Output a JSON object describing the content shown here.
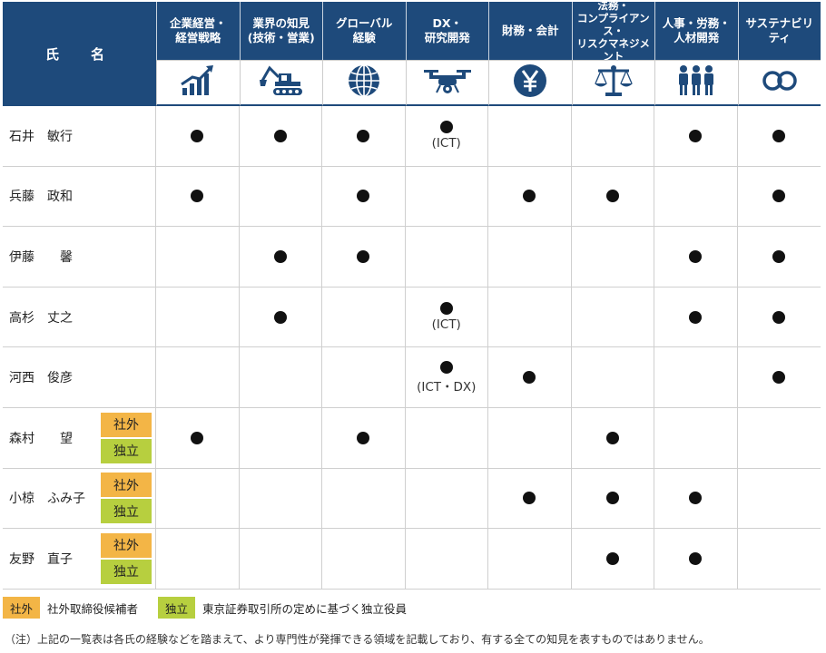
{
  "header": {
    "name_col": "氏　名",
    "skills": [
      {
        "label": "企業経営・\n経営戦略",
        "icon": "growth-chart-icon"
      },
      {
        "label": "業界の知見\n(技術・営業)",
        "icon": "excavator-icon"
      },
      {
        "label": "グローバル\n経験",
        "icon": "globe-icon"
      },
      {
        "label": "DX・\n研究開発",
        "icon": "drone-icon"
      },
      {
        "label": "財務・会計",
        "icon": "yen-icon"
      },
      {
        "label": "法務・\nコンプライアンス・\nリスクマネジメント",
        "icon": "scales-icon"
      },
      {
        "label": "人事・労務・\n人材開発",
        "icon": "people-icon"
      },
      {
        "label": "サステナビリティ",
        "icon": "infinity-loop-icon"
      }
    ]
  },
  "badges": {
    "outside": "社外",
    "independent": "独立"
  },
  "rows": [
    {
      "name": "石井　敏行",
      "outside": false,
      "independent": false,
      "cells": [
        1,
        1,
        1,
        1,
        0,
        0,
        1,
        1
      ],
      "notes": {
        "3": "(ICT)"
      }
    },
    {
      "name": "兵藤　政和",
      "outside": false,
      "independent": false,
      "cells": [
        1,
        0,
        1,
        0,
        1,
        1,
        0,
        1
      ],
      "notes": {}
    },
    {
      "name": "伊藤　　馨",
      "outside": false,
      "independent": false,
      "cells": [
        0,
        1,
        1,
        0,
        0,
        0,
        1,
        1
      ],
      "notes": {}
    },
    {
      "name": "高杉　丈之",
      "outside": false,
      "independent": false,
      "cells": [
        0,
        1,
        0,
        1,
        0,
        0,
        1,
        1
      ],
      "notes": {
        "3": "(ICT)"
      }
    },
    {
      "name": "河西　俊彦",
      "outside": false,
      "independent": false,
      "cells": [
        0,
        0,
        0,
        1,
        1,
        0,
        0,
        1
      ],
      "notes": {
        "3": "(ICT・DX)"
      }
    },
    {
      "name": "森村　　望",
      "outside": true,
      "independent": true,
      "cells": [
        1,
        0,
        1,
        0,
        0,
        1,
        0,
        0
      ],
      "notes": {}
    },
    {
      "name": "小椋　ふみ子",
      "outside": true,
      "independent": true,
      "cells": [
        0,
        0,
        0,
        0,
        1,
        1,
        1,
        0
      ],
      "notes": {}
    },
    {
      "name": "友野　直子",
      "outside": true,
      "independent": true,
      "cells": [
        0,
        0,
        0,
        0,
        0,
        1,
        1,
        0
      ],
      "notes": {}
    }
  ],
  "legend": {
    "outside_label": "社外",
    "outside_text": "社外取締役候補者",
    "independent_label": "独立",
    "independent_text": "東京証券取引所の定めに基づく独立役員"
  },
  "footnote": "（注）上記の一覧表は各氏の経験などを踏まえて、より専門性が発揮できる領域を記載しており、有する全ての知見を表すものではありません。",
  "colors": {
    "header": "#1e4a7b",
    "outside_badge": "#f3b546",
    "independent_badge": "#b7cf3f"
  }
}
